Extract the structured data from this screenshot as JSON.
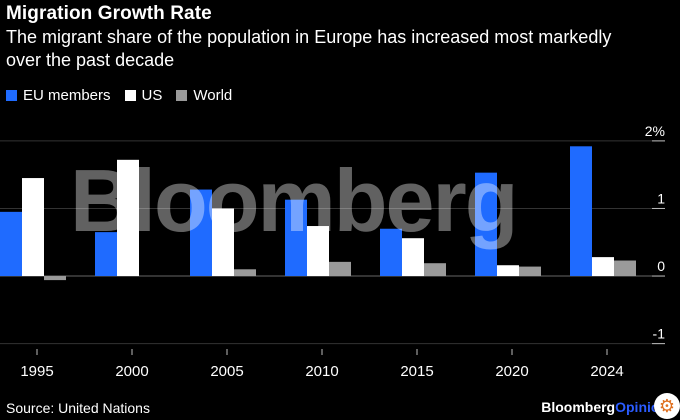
{
  "title": "Migration Growth Rate",
  "subtitle": "The migrant share of the population in Europe has increased most markedly over the past decade",
  "source": "Source: United Nations",
  "brand": {
    "main": "Bloomberg",
    "accent": "Opinion"
  },
  "watermark": "Bloomberg",
  "colors": {
    "eu": "#1f6bff",
    "us": "#ffffff",
    "world": "#9a9a9a",
    "background": "#000000"
  },
  "chart_data": {
    "type": "bar",
    "categories": [
      "1995",
      "2000",
      "2005",
      "2010",
      "2015",
      "2020",
      "2024"
    ],
    "series": [
      {
        "name": "EU members",
        "values": [
          0.95,
          0.65,
          1.28,
          1.13,
          0.7,
          1.53,
          1.92
        ]
      },
      {
        "name": "US",
        "values": [
          1.45,
          1.72,
          1.0,
          0.74,
          0.56,
          0.16,
          0.28
        ]
      },
      {
        "name": "World",
        "values": [
          -0.06,
          0.0,
          0.1,
          0.21,
          0.19,
          0.14,
          0.23
        ]
      }
    ],
    "yticks": [
      {
        "value": 2,
        "label": "2%"
      },
      {
        "value": 1,
        "label": "1"
      },
      {
        "value": 0,
        "label": "0"
      },
      {
        "value": -1,
        "label": "-1"
      }
    ],
    "ylim": [
      -1.05,
      2.25
    ],
    "grid": true,
    "legend": "top-left"
  }
}
